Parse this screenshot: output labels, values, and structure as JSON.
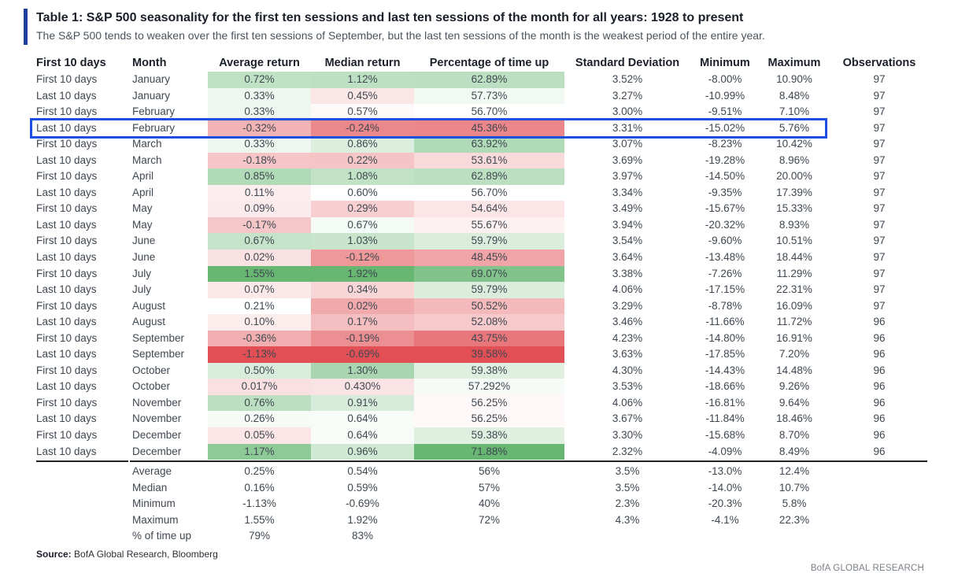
{
  "title": "Table 1: S&P 500 seasonality for the first ten sessions and last ten sessions of the month for all years: 1928 to present",
  "subtitle": "The S&P 500 tends to weaken over the first ten sessions of September, but the last ten sessions of the month is the weakest period of the entire year.",
  "columns": [
    "First 10 days",
    "Month",
    "Average return",
    "Median return",
    "Percentage of time up",
    "Standard Deviation",
    "Minimum",
    "Maximum",
    "Observations"
  ],
  "rows": [
    {
      "period": "First 10 days",
      "month": "January",
      "avg": "0.72%",
      "avg_v": 0.72,
      "med": "1.12%",
      "med_v": 1.12,
      "pct": "62.89%",
      "pct_v": 62.89,
      "sd": "3.52%",
      "min": "-8.00%",
      "max": "10.90%",
      "obs": "97"
    },
    {
      "period": "Last 10 days",
      "month": "January",
      "avg": "0.33%",
      "avg_v": 0.33,
      "med": "0.45%",
      "med_v": 0.45,
      "pct": "57.73%",
      "pct_v": 57.73,
      "sd": "3.27%",
      "min": "-10.99%",
      "max": "8.48%",
      "obs": "97"
    },
    {
      "period": "First 10 days",
      "month": "February",
      "avg": "0.33%",
      "avg_v": 0.33,
      "med": "0.57%",
      "med_v": 0.57,
      "pct": "56.70%",
      "pct_v": 56.7,
      "sd": "3.00%",
      "min": "-9.51%",
      "max": "7.10%",
      "obs": "97"
    },
    {
      "period": "Last 10 days",
      "month": "February",
      "avg": "-0.32%",
      "avg_v": -0.32,
      "med": "-0.24%",
      "med_v": -0.24,
      "pct": "45.36%",
      "pct_v": 45.36,
      "sd": "3.31%",
      "min": "-15.02%",
      "max": "5.76%",
      "obs": "97"
    },
    {
      "period": "First 10 days",
      "month": "March",
      "avg": "0.33%",
      "avg_v": 0.33,
      "med": "0.86%",
      "med_v": 0.86,
      "pct": "63.92%",
      "pct_v": 63.92,
      "sd": "3.07%",
      "min": "-8.23%",
      "max": "10.42%",
      "obs": "97"
    },
    {
      "period": "Last 10 days",
      "month": "March",
      "avg": "-0.18%",
      "avg_v": -0.18,
      "med": "0.22%",
      "med_v": 0.22,
      "pct": "53.61%",
      "pct_v": 53.61,
      "sd": "3.69%",
      "min": "-19.28%",
      "max": "8.96%",
      "obs": "97"
    },
    {
      "period": "First 10 days",
      "month": "April",
      "avg": "0.85%",
      "avg_v": 0.85,
      "med": "1.08%",
      "med_v": 1.08,
      "pct": "62.89%",
      "pct_v": 62.89,
      "sd": "3.97%",
      "min": "-14.50%",
      "max": "20.00%",
      "obs": "97"
    },
    {
      "period": "Last 10 days",
      "month": "April",
      "avg": "0.11%",
      "avg_v": 0.11,
      "med": "0.60%",
      "med_v": 0.6,
      "pct": "56.70%",
      "pct_v": 56.7,
      "sd": "3.34%",
      "min": "-9.35%",
      "max": "17.39%",
      "obs": "97"
    },
    {
      "period": "First 10 days",
      "month": "May",
      "avg": "0.09%",
      "avg_v": 0.09,
      "med": "0.29%",
      "med_v": 0.29,
      "pct": "54.64%",
      "pct_v": 54.64,
      "sd": "3.49%",
      "min": "-15.67%",
      "max": "15.33%",
      "obs": "97"
    },
    {
      "period": "Last 10 days",
      "month": "May",
      "avg": "-0.17%",
      "avg_v": -0.17,
      "med": "0.67%",
      "med_v": 0.67,
      "pct": "55.67%",
      "pct_v": 55.67,
      "sd": "3.94%",
      "min": "-20.32%",
      "max": "8.93%",
      "obs": "97"
    },
    {
      "period": "First 10 days",
      "month": "June",
      "avg": "0.67%",
      "avg_v": 0.67,
      "med": "1.03%",
      "med_v": 1.03,
      "pct": "59.79%",
      "pct_v": 59.79,
      "sd": "3.54%",
      "min": "-9.60%",
      "max": "10.51%",
      "obs": "97"
    },
    {
      "period": "Last 10 days",
      "month": "June",
      "avg": "0.02%",
      "avg_v": 0.02,
      "med": "-0.12%",
      "med_v": -0.12,
      "pct": "48.45%",
      "pct_v": 48.45,
      "sd": "3.64%",
      "min": "-13.48%",
      "max": "18.44%",
      "obs": "97"
    },
    {
      "period": "First 10 days",
      "month": "July",
      "avg": "1.55%",
      "avg_v": 1.55,
      "med": "1.92%",
      "med_v": 1.92,
      "pct": "69.07%",
      "pct_v": 69.07,
      "sd": "3.38%",
      "min": "-7.26%",
      "max": "11.29%",
      "obs": "97"
    },
    {
      "period": "Last 10 days",
      "month": "July",
      "avg": "0.07%",
      "avg_v": 0.07,
      "med": "0.34%",
      "med_v": 0.34,
      "pct": "59.79%",
      "pct_v": 59.79,
      "sd": "4.06%",
      "min": "-17.15%",
      "max": "22.31%",
      "obs": "97"
    },
    {
      "period": "First 10 days",
      "month": "August",
      "avg": "0.21%",
      "avg_v": 0.21,
      "med": "0.02%",
      "med_v": 0.02,
      "pct": "50.52%",
      "pct_v": 50.52,
      "sd": "3.29%",
      "min": "-8.78%",
      "max": "16.09%",
      "obs": "97"
    },
    {
      "period": "Last 10 days",
      "month": "August",
      "avg": "0.10%",
      "avg_v": 0.1,
      "med": "0.17%",
      "med_v": 0.17,
      "pct": "52.08%",
      "pct_v": 52.08,
      "sd": "3.46%",
      "min": "-11.66%",
      "max": "11.72%",
      "obs": "96"
    },
    {
      "period": "First 10 days",
      "month": "September",
      "avg": "-0.36%",
      "avg_v": -0.36,
      "med": "-0.19%",
      "med_v": -0.19,
      "pct": "43.75%",
      "pct_v": 43.75,
      "sd": "4.23%",
      "min": "-14.80%",
      "max": "16.91%",
      "obs": "96"
    },
    {
      "period": "Last 10 days",
      "month": "September",
      "avg": "-1.13%",
      "avg_v": -1.13,
      "med": "-0.69%",
      "med_v": -0.69,
      "pct": "39.58%",
      "pct_v": 39.58,
      "sd": "3.63%",
      "min": "-17.85%",
      "max": "7.20%",
      "obs": "96"
    },
    {
      "period": "First 10 days",
      "month": "October",
      "avg": "0.50%",
      "avg_v": 0.5,
      "med": "1.30%",
      "med_v": 1.3,
      "pct": "59.38%",
      "pct_v": 59.38,
      "sd": "4.30%",
      "min": "-14.43%",
      "max": "14.48%",
      "obs": "96"
    },
    {
      "period": "Last 10 days",
      "month": "October",
      "avg": "0.017%",
      "avg_v": 0.017,
      "med": "0.430%",
      "med_v": 0.43,
      "pct": "57.292%",
      "pct_v": 57.292,
      "sd": "3.53%",
      "min": "-18.66%",
      "max": "9.26%",
      "obs": "96"
    },
    {
      "period": "First 10 days",
      "month": "November",
      "avg": "0.76%",
      "avg_v": 0.76,
      "med": "0.91%",
      "med_v": 0.91,
      "pct": "56.25%",
      "pct_v": 56.25,
      "sd": "4.06%",
      "min": "-16.81%",
      "max": "9.64%",
      "obs": "96"
    },
    {
      "period": "Last 10 days",
      "month": "November",
      "avg": "0.26%",
      "avg_v": 0.26,
      "med": "0.64%",
      "med_v": 0.64,
      "pct": "56.25%",
      "pct_v": 56.25,
      "sd": "3.67%",
      "min": "-11.84%",
      "max": "18.46%",
      "obs": "96"
    },
    {
      "period": "First 10 days",
      "month": "December",
      "avg": "0.05%",
      "avg_v": 0.05,
      "med": "0.64%",
      "med_v": 0.64,
      "pct": "59.38%",
      "pct_v": 59.38,
      "sd": "3.30%",
      "min": "-15.68%",
      "max": "8.70%",
      "obs": "96"
    },
    {
      "period": "Last 10 days",
      "month": "December",
      "avg": "1.17%",
      "avg_v": 1.17,
      "med": "0.96%",
      "med_v": 0.96,
      "pct": "71.88%",
      "pct_v": 71.88,
      "sd": "2.32%",
      "min": "-4.09%",
      "max": "8.49%",
      "obs": "96"
    }
  ],
  "highlighted_row": 3,
  "summary": [
    {
      "label": "Average",
      "avg": "0.25%",
      "med": "0.54%",
      "pct": "56%",
      "sd": "3.5%",
      "min": "-13.0%",
      "max": "12.4%"
    },
    {
      "label": "Median",
      "avg": "0.16%",
      "med": "0.59%",
      "pct": "57%",
      "sd": "3.5%",
      "min": "-14.0%",
      "max": "10.7%"
    },
    {
      "label": "Minimum",
      "avg": "-1.13%",
      "med": "-0.69%",
      "pct": "40%",
      "sd": "2.3%",
      "min": "-20.3%",
      "max": "5.8%"
    },
    {
      "label": "Maximum",
      "avg": "1.55%",
      "med": "1.92%",
      "pct": "72%",
      "sd": "4.3%",
      "min": "-4.1%",
      "max": "22.3%"
    },
    {
      "label": "% of time up",
      "avg": "79%",
      "med": "83%",
      "pct": "",
      "sd": "",
      "min": "",
      "max": ""
    }
  ],
  "source_label": "Source:",
  "source_text": "BofA Global Research, Bloomberg",
  "brand": "BofA GLOBAL RESEARCH",
  "colors": {
    "accent_bar": "#1f3f9e",
    "highlight_box": "#1f4fe0",
    "heat_positive": "#5fb36b",
    "heat_negative": "#e0474c"
  }
}
